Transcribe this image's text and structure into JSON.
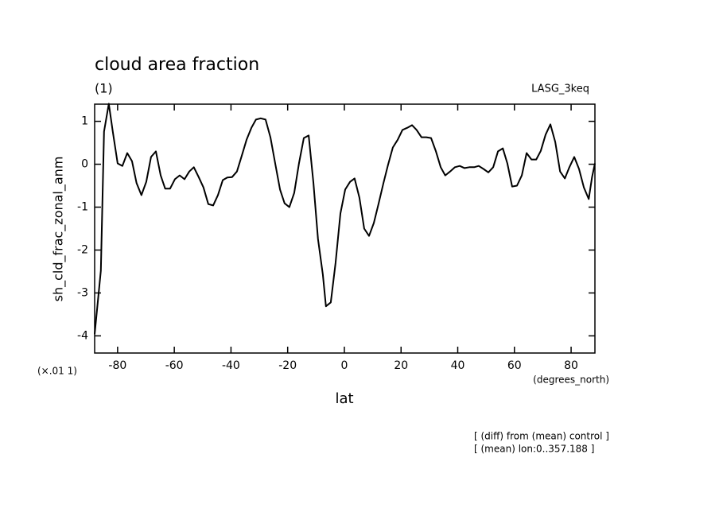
{
  "chart_data": {
    "type": "line",
    "title": "cloud area fraction",
    "subtitle": "(1)",
    "annotation_right": "LASG_3keq",
    "y_label": "sh_cld_frac_zonal_anm",
    "y_unit": "(×.01 1)",
    "x_unit": "(degrees_north)",
    "x_label": "lat",
    "notes": [
      "[ (diff) from (mean) control ]",
      "[ (mean) lon:0..357.188 ]"
    ],
    "xlim": [
      -88.1,
      88.4
    ],
    "ylim": [
      -4.4,
      1.4
    ],
    "xticks": [
      -80,
      -60,
      -40,
      -20,
      0,
      20,
      40,
      60,
      80
    ],
    "yticks": [
      -4,
      -3,
      -2,
      -1,
      0,
      1
    ],
    "color": "#000000",
    "x": [
      -88.1,
      -85.9,
      -84.8,
      -83.1,
      -81.7,
      -80.0,
      -78.3,
      -76.6,
      -74.9,
      -73.3,
      -71.6,
      -69.9,
      -68.2,
      -66.5,
      -64.8,
      -63.2,
      -61.5,
      -59.8,
      -58.1,
      -56.4,
      -54.7,
      -53.1,
      -51.4,
      -49.7,
      -48.0,
      -46.3,
      -44.6,
      -42.9,
      -41.3,
      -39.6,
      -37.9,
      -36.2,
      -34.5,
      -32.8,
      -31.2,
      -29.5,
      -27.8,
      -26.1,
      -24.4,
      -22.7,
      -21.1,
      -19.4,
      -17.7,
      -16.0,
      -14.3,
      -12.6,
      -10.9,
      -9.3,
      -7.6,
      -6.5,
      -4.8,
      -3.1,
      -1.4,
      0.3,
      2.0,
      3.6,
      5.3,
      7.0,
      8.7,
      10.4,
      12.1,
      13.8,
      15.4,
      17.1,
      18.8,
      20.5,
      22.2,
      23.9,
      25.5,
      27.2,
      28.9,
      30.6,
      32.3,
      34.0,
      35.6,
      37.3,
      39.0,
      40.7,
      42.4,
      44.1,
      45.8,
      47.4,
      49.1,
      50.8,
      52.5,
      54.2,
      55.9,
      57.5,
      59.2,
      60.9,
      62.6,
      64.3,
      66.0,
      67.7,
      69.3,
      71.0,
      72.7,
      74.4,
      76.1,
      77.8,
      79.4,
      81.1,
      82.8,
      84.5,
      86.2,
      87.4,
      88.4
    ],
    "values": [
      -3.96,
      -2.48,
      0.76,
      1.41,
      0.76,
      0.02,
      -0.04,
      0.26,
      0.07,
      -0.44,
      -0.72,
      -0.41,
      0.17,
      0.3,
      -0.26,
      -0.57,
      -0.57,
      -0.35,
      -0.26,
      -0.35,
      -0.17,
      -0.07,
      -0.3,
      -0.54,
      -0.93,
      -0.96,
      -0.72,
      -0.37,
      -0.31,
      -0.3,
      -0.17,
      0.2,
      0.57,
      0.85,
      1.04,
      1.07,
      1.04,
      0.63,
      0.02,
      -0.59,
      -0.91,
      -1.0,
      -0.67,
      0.02,
      0.61,
      0.67,
      -0.44,
      -1.74,
      -2.57,
      -3.31,
      -3.22,
      -2.3,
      -1.15,
      -0.59,
      -0.41,
      -0.33,
      -0.78,
      -1.5,
      -1.67,
      -1.37,
      -0.91,
      -0.44,
      -0.02,
      0.39,
      0.57,
      0.8,
      0.85,
      0.91,
      0.8,
      0.63,
      0.63,
      0.61,
      0.3,
      -0.07,
      -0.26,
      -0.17,
      -0.07,
      -0.04,
      -0.09,
      -0.07,
      -0.07,
      -0.04,
      -0.11,
      -0.19,
      -0.07,
      0.3,
      0.37,
      0.02,
      -0.52,
      -0.5,
      -0.26,
      0.26,
      0.11,
      0.11,
      0.31,
      0.69,
      0.93,
      0.52,
      -0.17,
      -0.33,
      -0.07,
      0.17,
      -0.11,
      -0.54,
      -0.81,
      -0.3,
      0.02
    ]
  }
}
